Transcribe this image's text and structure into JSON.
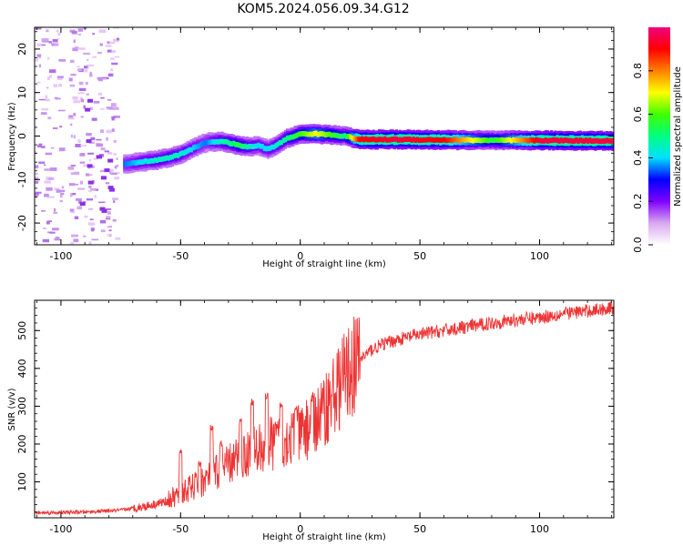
{
  "figure": {
    "title": "KOM5.2024.056.09.34.G12"
  },
  "chart_data": [
    {
      "type": "heatmap",
      "title": "KOM5.2024.056.09.34.G12",
      "xlabel": "Height of straight line (km)",
      "ylabel": "Frequency (Hz)",
      "xlim": [
        -111,
        131
      ],
      "ylim": [
        -25,
        25
      ],
      "x_ticks": [
        -100,
        -50,
        0,
        50,
        100
      ],
      "y_ticks": [
        -20,
        -10,
        0,
        10,
        20
      ],
      "colorbar": {
        "label": "Normalized spectral amplitude",
        "range": [
          0,
          1
        ],
        "ticks": [
          0.0,
          0.2,
          0.4,
          0.6,
          0.8
        ],
        "colors": [
          "#ffffff",
          "#d8a8f0",
          "#8000ff",
          "#0000ff",
          "#00e0ff",
          "#00ff80",
          "#40ff00",
          "#ffff00",
          "#ff8000",
          "#ff0000",
          "#f00080"
        ]
      },
      "ridge": {
        "x": [
          -74,
          -68,
          -60,
          -52,
          -46,
          -40,
          -34,
          -30,
          -26,
          -22,
          -18,
          -14,
          -10,
          -6,
          0,
          6,
          12,
          18,
          24,
          40,
          60,
          80,
          100,
          131
        ],
        "frequency": [
          -6.5,
          -6.0,
          -5.5,
          -4.5,
          -3.0,
          -1.5,
          -1.2,
          -1.6,
          -2.2,
          -2.5,
          -2.2,
          -3.0,
          -2.0,
          -0.5,
          0.5,
          0.5,
          0.3,
          0.0,
          -0.8,
          -0.8,
          -0.9,
          -1.0,
          -1.0,
          -1.1
        ],
        "amplitude": [
          0.35,
          0.4,
          0.45,
          0.45,
          0.4,
          0.35,
          0.45,
          0.5,
          0.55,
          0.45,
          0.4,
          0.4,
          0.45,
          0.5,
          0.6,
          0.7,
          0.6,
          0.5,
          0.9,
          0.95,
          0.9,
          0.55,
          0.95,
          0.95
        ]
      }
    },
    {
      "type": "line",
      "xlabel": "Height of straight line (km)",
      "ylabel": "SNR (v/v)",
      "xlim": [
        -111,
        131
      ],
      "ylim": [
        5,
        580
      ],
      "x_ticks": [
        -100,
        -50,
        0,
        50,
        100
      ],
      "y_ticks": [
        100,
        200,
        300,
        400,
        500
      ],
      "color": "#ee3333",
      "trend": {
        "x": [
          -111,
          -90,
          -75,
          -65,
          -55,
          -50,
          -45,
          -40,
          -35,
          -30,
          -25,
          -20,
          -15,
          -10,
          -5,
          0,
          5,
          10,
          15,
          20,
          25,
          30,
          35,
          40,
          50,
          60,
          70,
          80,
          90,
          100,
          110,
          120,
          131
        ],
        "y": [
          18,
          20,
          25,
          35,
          50,
          70,
          85,
          105,
          125,
          145,
          165,
          180,
          195,
          205,
          215,
          225,
          250,
          290,
          340,
          390,
          425,
          450,
          465,
          475,
          490,
          500,
          510,
          520,
          528,
          535,
          545,
          552,
          560
        ]
      },
      "spikes": [
        {
          "x": -50,
          "y": 190
        },
        {
          "x": -42,
          "y": 160
        },
        {
          "x": -37,
          "y": 255
        },
        {
          "x": -33,
          "y": 210
        },
        {
          "x": -25,
          "y": 270
        },
        {
          "x": -20,
          "y": 320
        },
        {
          "x": -14,
          "y": 340
        },
        {
          "x": -8,
          "y": 310
        },
        {
          "x": -2,
          "y": 300
        },
        {
          "x": 5,
          "y": 330
        }
      ]
    }
  ]
}
